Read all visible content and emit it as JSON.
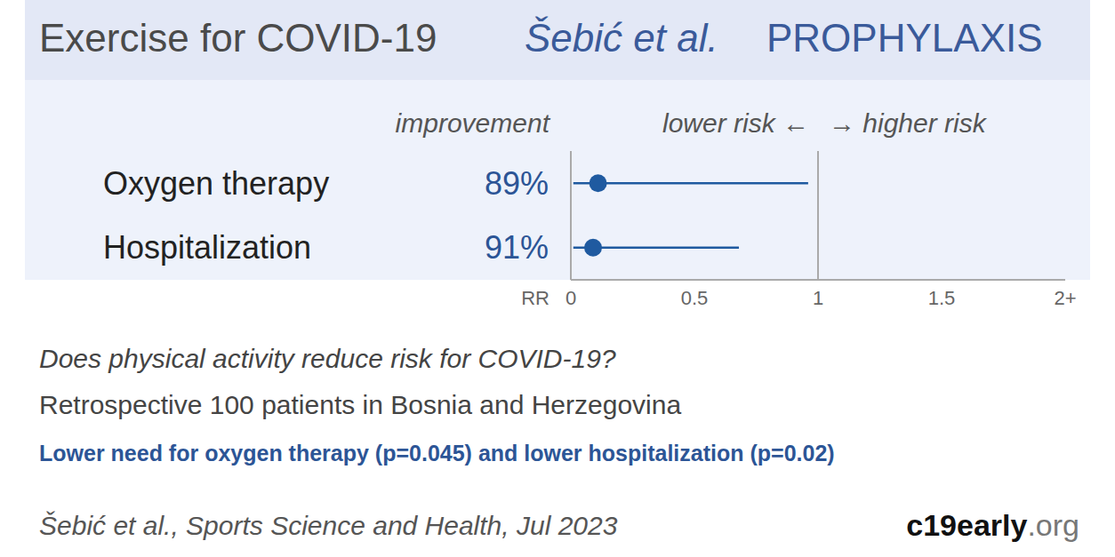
{
  "header": {
    "title": "Exercise for COVID-19",
    "authors": "Šebić et al.",
    "category": "PROPHYLAXIS"
  },
  "chart_data": {
    "type": "forest",
    "column_title": "improvement",
    "direction_left": "lower risk ←",
    "direction_right": "→ higher risk",
    "x_label": "RR",
    "categories": [
      "Oxygen therapy",
      "Hospitalization"
    ],
    "values": [
      0.11,
      0.09
    ],
    "ci_lower": [
      0.01,
      0.01
    ],
    "ci_upper": [
      0.96,
      0.68
    ],
    "improvement_labels": [
      "89%",
      "91%"
    ],
    "reference_line": 1,
    "xlim": [
      0,
      2
    ],
    "xticks": [
      0,
      0.5,
      1,
      1.5,
      {
        "value": 2,
        "label": "2+"
      }
    ],
    "color": "#1f5aa0"
  },
  "footer": {
    "question": "Does physical activity reduce risk for COVID-19?",
    "study": "Retrospective 100 patients in Bosnia and Herzegovina",
    "result": "Lower need for oxygen therapy (p=0.045) and lower hospitalization (p=0.02)",
    "citation": "Šebić et al., Sports Science and Health, Jul 2023",
    "site": "c19early.org"
  }
}
